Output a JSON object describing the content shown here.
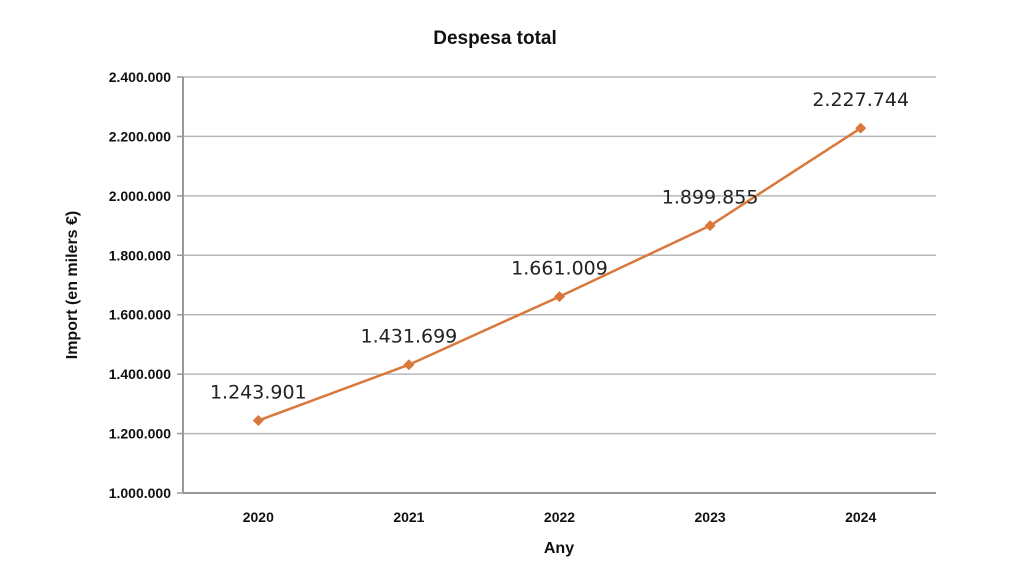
{
  "chart_data": {
    "type": "line",
    "title": "Despesa total",
    "xlabel": "Any",
    "ylabel": "Import (en milers €)",
    "categories": [
      "2020",
      "2021",
      "2022",
      "2023",
      "2024"
    ],
    "series": [
      {
        "name": "Despesa total",
        "values": [
          1243901,
          1431699,
          1661009,
          1899855,
          2227744
        ],
        "color": "#d9783a"
      }
    ],
    "data_labels": [
      "1.243.901",
      "1.431.699",
      "1.661.009",
      "1.899.855",
      "2.227.744"
    ],
    "ylim": [
      1000000,
      2400000
    ],
    "yticks": [
      1000000,
      1200000,
      1400000,
      1600000,
      1800000,
      2000000,
      2200000,
      2400000
    ],
    "ytick_labels": [
      "1.000.000",
      "1.200.000",
      "1.400.000",
      "1.600.000",
      "1.800.000",
      "2.000.000",
      "2.200.000",
      "2.400.000"
    ],
    "grid": true,
    "legend": "none"
  }
}
